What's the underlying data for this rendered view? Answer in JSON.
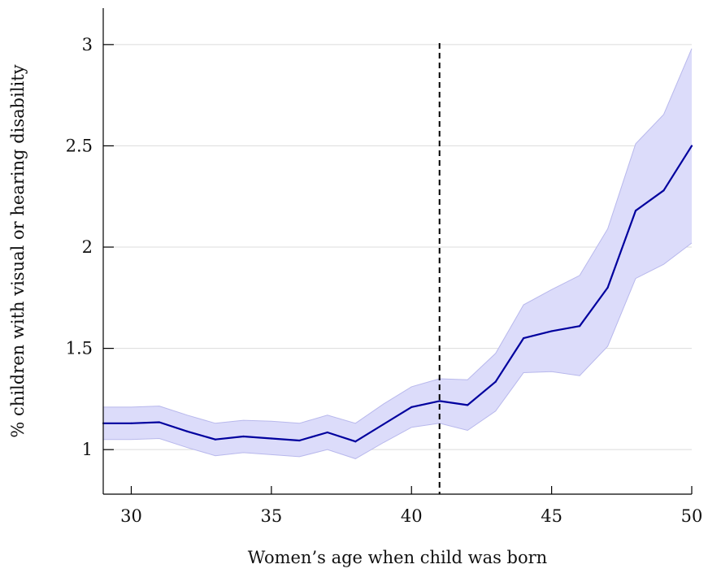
{
  "chart_data": {
    "type": "line",
    "title": "",
    "xlabel": "Women’s age when child was born",
    "ylabel": "% children with visual or hearing disability",
    "xlim": [
      29,
      50
    ],
    "ylim": [
      0.78,
      3.18
    ],
    "xticks": [
      30,
      35,
      40,
      45,
      50
    ],
    "yticks": [
      1,
      1.5,
      2,
      2.5,
      3
    ],
    "xtick_labels": [
      "30",
      "35",
      "40",
      "45",
      "50"
    ],
    "ytick_labels": [
      "1",
      "1.5",
      "2",
      "2.5",
      "3"
    ],
    "grid": "horizontal",
    "legend": "none",
    "vline": {
      "x": 41,
      "style": "dashed",
      "color": "#000000"
    },
    "series": [
      {
        "x": [
          29,
          30,
          31,
          32,
          33,
          34,
          35,
          36,
          37,
          38,
          39,
          40,
          41,
          42,
          43,
          44,
          45,
          46,
          47,
          48,
          49,
          50
        ],
        "y": [
          1.13,
          1.13,
          1.135,
          1.09,
          1.05,
          1.065,
          1.055,
          1.045,
          1.085,
          1.04,
          1.125,
          1.21,
          1.24,
          1.22,
          1.335,
          1.55,
          1.585,
          1.61,
          1.8,
          2.18,
          2.28,
          2.5
        ],
        "lower": [
          1.05,
          1.05,
          1.055,
          1.01,
          0.97,
          0.985,
          0.975,
          0.965,
          1.0,
          0.955,
          1.035,
          1.11,
          1.13,
          1.095,
          1.19,
          1.38,
          1.385,
          1.365,
          1.51,
          1.845,
          1.915,
          2.02
        ],
        "upper": [
          1.21,
          1.21,
          1.215,
          1.17,
          1.13,
          1.145,
          1.14,
          1.13,
          1.17,
          1.13,
          1.225,
          1.31,
          1.35,
          1.345,
          1.475,
          1.715,
          1.79,
          1.86,
          2.09,
          2.51,
          2.655,
          2.98
        ],
        "color": "#00009e",
        "band_color": "#dcdcfa",
        "band_edge_color": "#b8b8ec"
      }
    ]
  }
}
